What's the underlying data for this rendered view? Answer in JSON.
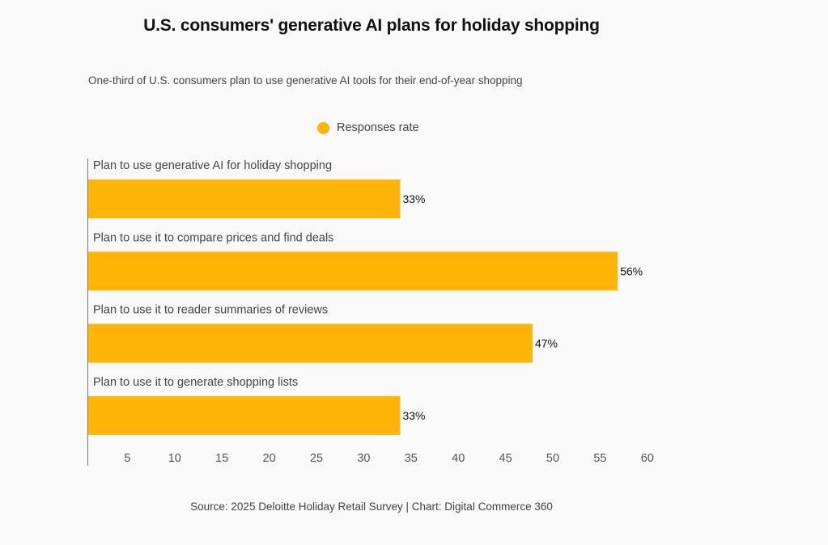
{
  "chart_data": {
    "type": "bar",
    "orientation": "horizontal",
    "title": "U.S. consumers' generative AI plans for holiday shopping",
    "subtitle": "One-third of U.S. consumers plan to use generative AI tools for their end-of-year shopping",
    "categories": [
      "Plan to use generative AI for holiday shopping",
      "Plan to use it to compare prices and find deals",
      "Plan to use it to reader summaries of reviews",
      "Plan to use it to generate shopping lists"
    ],
    "series": [
      {
        "name": "Responses rate",
        "values": [
          33,
          56,
          47,
          33
        ],
        "color": "#ffb508"
      }
    ],
    "data_labels": [
      "33%",
      "56%",
      "47%",
      "33%"
    ],
    "xlim": [
      0,
      60
    ],
    "xticks": [
      5,
      10,
      15,
      20,
      25,
      30,
      35,
      40,
      45,
      50,
      55,
      60
    ],
    "xtick_labels": [
      "5",
      "10",
      "15",
      "20",
      "25",
      "30",
      "35",
      "40",
      "45",
      "50",
      "55",
      "60"
    ],
    "xlabel": "",
    "ylabel": "",
    "grid": false,
    "legend_position": "top-center",
    "source": "Source: 2025 Deloitte Holiday Retail Survey | Chart: Digital Commerce 360"
  }
}
